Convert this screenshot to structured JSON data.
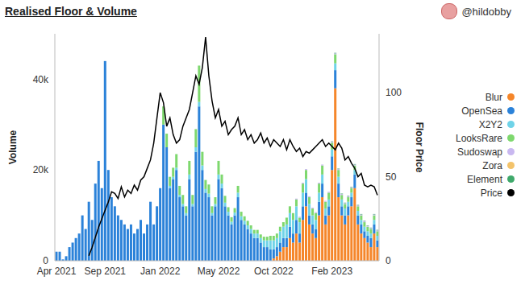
{
  "chart_data": {
    "type": "bar",
    "title": "Realised Floor & Volume",
    "handle": "@hildobby",
    "y_label": "Volume",
    "y2_label": "Floor Price",
    "stacked": true,
    "grid": false,
    "legend": "right",
    "categories": [
      "Apr 2021",
      null,
      null,
      null,
      null,
      null,
      null,
      null,
      null,
      null,
      null,
      null,
      null,
      null,
      null,
      "Sep 2021",
      null,
      null,
      null,
      null,
      null,
      null,
      null,
      null,
      null,
      null,
      null,
      null,
      null,
      null,
      null,
      null,
      "Jan 2022",
      null,
      null,
      null,
      null,
      null,
      null,
      null,
      null,
      null,
      null,
      null,
      null,
      null,
      null,
      null,
      null,
      null,
      "May 2022",
      null,
      null,
      null,
      null,
      null,
      null,
      null,
      null,
      null,
      null,
      null,
      null,
      null,
      null,
      null,
      null,
      "Oct 2022",
      null,
      null,
      null,
      null,
      null,
      null,
      null,
      null,
      null,
      null,
      null,
      null,
      null,
      null,
      null,
      null,
      null,
      "Feb 2023",
      null,
      null,
      null,
      null,
      null,
      null,
      null,
      null,
      null,
      null,
      null,
      null,
      null,
      null
    ],
    "ylim": [
      0,
      50000
    ],
    "yticks": [
      0,
      {
        "value": 20000,
        "label": "20k"
      },
      {
        "value": 40000,
        "label": "40k"
      }
    ],
    "y2lim": [
      0,
      135
    ],
    "y2ticks": [
      0,
      50,
      100
    ],
    "series": [
      {
        "name": "Blur",
        "color": "#f5862a",
        "type": "bar",
        "values": [
          0,
          0,
          0,
          0,
          0,
          0,
          0,
          0,
          0,
          0,
          0,
          0,
          0,
          0,
          0,
          0,
          0,
          0,
          0,
          0,
          0,
          0,
          0,
          0,
          0,
          0,
          0,
          0,
          0,
          0,
          0,
          0,
          0,
          0,
          0,
          0,
          0,
          0,
          0,
          0,
          0,
          0,
          0,
          0,
          0,
          0,
          0,
          0,
          0,
          0,
          0,
          0,
          0,
          0,
          0,
          0,
          0,
          0,
          0,
          0,
          0,
          0,
          0,
          0,
          0,
          0,
          0,
          500,
          1000,
          2000,
          3000,
          3000,
          5000,
          4000,
          6000,
          4000,
          9000,
          12000,
          8000,
          6000,
          5000,
          10000,
          14000,
          8000,
          10000,
          20000,
          38000,
          14000,
          10000,
          8000,
          10000,
          12000,
          16000,
          8000,
          6000,
          5000,
          4000,
          3000,
          6000,
          3000
        ]
      },
      {
        "name": "OpenSea",
        "color": "#2b82d9",
        "type": "bar",
        "values": [
          2000,
          2000,
          300,
          1000,
          3000,
          4000,
          5000,
          6000,
          10000,
          7000,
          13000,
          9000,
          17000,
          22000,
          16000,
          44000,
          20000,
          14000,
          12000,
          10000,
          9000,
          8000,
          7000,
          8000,
          6000,
          7000,
          9000,
          6000,
          8000,
          13000,
          8000,
          12000,
          16000,
          30000,
          25000,
          16000,
          18000,
          20000,
          14000,
          12000,
          10000,
          18000,
          12000,
          24000,
          34000,
          20000,
          15000,
          14000,
          10000,
          12000,
          18000,
          16000,
          12000,
          10000,
          8000,
          10000,
          14000,
          9000,
          8000,
          7000,
          6000,
          5000,
          5000,
          4000,
          3000,
          3000,
          2500,
          2000,
          2000,
          2000,
          2000,
          2000,
          2500,
          2000,
          3000,
          2000,
          3000,
          3000,
          2000,
          2000,
          2000,
          3000,
          3000,
          2000,
          2000,
          3000,
          4000,
          3000,
          2000,
          2000,
          2000,
          2000,
          3000,
          2000,
          2000,
          1500,
          1500,
          2000,
          2000,
          1500
        ]
      },
      {
        "name": "X2Y2",
        "color": "#6fd3e8",
        "type": "bar",
        "values": [
          0,
          0,
          0,
          0,
          0,
          0,
          0,
          0,
          0,
          0,
          0,
          0,
          0,
          0,
          0,
          0,
          0,
          0,
          0,
          0,
          0,
          0,
          0,
          0,
          0,
          0,
          0,
          0,
          0,
          0,
          0,
          0,
          0,
          0,
          0,
          500,
          500,
          500,
          500,
          500,
          500,
          1000,
          500,
          1000,
          1000,
          1000,
          800,
          800,
          500,
          500,
          1000,
          1000,
          800,
          800,
          600,
          600,
          1000,
          800,
          800,
          800,
          1000,
          1000,
          1000,
          1000,
          1500,
          1500,
          2000,
          2000,
          2000,
          2500,
          2500,
          3000,
          3000,
          3000,
          3000,
          2500,
          3000,
          3000,
          2500,
          2000,
          2000,
          2000,
          2000,
          1500,
          1500,
          1500,
          1500,
          1500,
          1500,
          1500,
          1000,
          1000,
          1000,
          1000,
          1000,
          1000,
          1000,
          1000,
          1000,
          1000
        ]
      },
      {
        "name": "LooksRare",
        "color": "#7ed86e",
        "type": "bar",
        "values": [
          0,
          0,
          0,
          0,
          0,
          0,
          0,
          0,
          0,
          0,
          0,
          0,
          0,
          0,
          0,
          0,
          0,
          0,
          0,
          0,
          0,
          0,
          0,
          0,
          0,
          0,
          0,
          0,
          0,
          0,
          0,
          0,
          0,
          4000,
          3000,
          2000,
          2000,
          3000,
          2000,
          2000,
          1500,
          3000,
          2000,
          4000,
          8000,
          3000,
          2000,
          2000,
          1500,
          1500,
          3000,
          2000,
          1500,
          1000,
          1000,
          1000,
          1500,
          1000,
          1000,
          1000,
          800,
          800,
          800,
          800,
          800,
          800,
          1000,
          1000,
          1000,
          1000,
          1000,
          1500,
          1500,
          1500,
          1500,
          1000,
          2000,
          2000,
          1500,
          1500,
          1500,
          2000,
          2000,
          1500,
          1500,
          1500,
          2000,
          1500,
          1000,
          1000,
          1000,
          1000,
          1000,
          1000,
          1000,
          1000,
          1000,
          1000,
          1000,
          1000
        ]
      },
      {
        "name": "Sudoswap",
        "color": "#c9b8f0",
        "type": "bar",
        "values": [
          0,
          0,
          0,
          0,
          0,
          0,
          0,
          0,
          0,
          0,
          0,
          0,
          0,
          0,
          0,
          0,
          0,
          0,
          0,
          0,
          0,
          0,
          0,
          0,
          0,
          0,
          0,
          0,
          0,
          0,
          0,
          0,
          0,
          0,
          0,
          0,
          0,
          0,
          0,
          0,
          0,
          0,
          0,
          0,
          0,
          0,
          0,
          0,
          0,
          0,
          0,
          0,
          0,
          0,
          0,
          0,
          0,
          0,
          0,
          0,
          0,
          0,
          0,
          0,
          0,
          0,
          0,
          0,
          0,
          0,
          0,
          0,
          0,
          0,
          200,
          200,
          200,
          200,
          200,
          200,
          200,
          200,
          200,
          200,
          200,
          200,
          200,
          200,
          200,
          200,
          200,
          200,
          200,
          200,
          200,
          200,
          200,
          200,
          200,
          200
        ]
      },
      {
        "name": "Zora",
        "color": "#f3c36b",
        "type": "bar",
        "values": [
          0,
          0,
          0,
          0,
          0,
          0,
          0,
          0,
          0,
          0,
          0,
          0,
          0,
          0,
          0,
          0,
          0,
          0,
          0,
          0,
          0,
          0,
          0,
          0,
          0,
          0,
          0,
          0,
          0,
          0,
          0,
          0,
          0,
          0,
          0,
          0,
          0,
          0,
          0,
          0,
          0,
          0,
          0,
          0,
          0,
          0,
          0,
          0,
          0,
          0,
          0,
          0,
          0,
          0,
          0,
          0,
          0,
          0,
          0,
          0,
          0,
          0,
          0,
          0,
          0,
          0,
          0,
          0,
          0,
          0,
          0,
          0,
          0,
          0,
          0,
          0,
          0,
          0,
          0,
          0,
          0,
          0,
          0,
          0,
          0,
          0,
          0,
          0,
          0,
          0,
          0,
          0,
          0,
          0,
          0,
          0,
          0,
          0,
          0,
          0
        ]
      },
      {
        "name": "Element",
        "color": "#3fa96b",
        "type": "bar",
        "values": [
          0,
          0,
          0,
          0,
          0,
          0,
          0,
          0,
          0,
          0,
          0,
          0,
          0,
          0,
          0,
          0,
          0,
          0,
          0,
          0,
          0,
          0,
          0,
          0,
          0,
          0,
          0,
          0,
          0,
          0,
          0,
          0,
          0,
          0,
          0,
          0,
          0,
          0,
          0,
          0,
          0,
          0,
          0,
          0,
          0,
          0,
          0,
          0,
          0,
          0,
          0,
          0,
          0,
          0,
          0,
          0,
          0,
          0,
          0,
          0,
          0,
          0,
          0,
          0,
          0,
          0,
          0,
          0,
          0,
          0,
          0,
          0,
          0,
          0,
          0,
          0,
          0,
          0,
          0,
          0,
          0,
          0,
          0,
          0,
          0,
          100,
          100,
          100,
          100,
          100,
          100,
          100,
          100,
          100,
          100,
          100,
          100,
          100,
          100,
          100
        ]
      },
      {
        "name": "Price",
        "color": "#000000",
        "type": "line",
        "axis": "y2",
        "values": [
          null,
          null,
          null,
          null,
          null,
          null,
          null,
          null,
          null,
          null,
          3,
          8,
          14,
          20,
          25,
          30,
          35,
          41,
          40,
          37,
          44,
          38,
          42,
          40,
          45,
          42,
          48,
          50,
          55,
          60,
          70,
          85,
          100,
          94,
          80,
          85,
          75,
          70,
          72,
          80,
          85,
          90,
          100,
          110,
          105,
          115,
          133,
          110,
          95,
          85,
          90,
          80,
          83,
          75,
          78,
          80,
          85,
          75,
          78,
          72,
          75,
          70,
          72,
          76,
          70,
          73,
          68,
          72,
          70,
          68,
          72,
          66,
          72,
          68,
          65,
          67,
          62,
          65,
          64,
          66,
          68,
          70,
          72,
          68,
          70,
          68,
          66,
          70,
          67,
          60,
          62,
          58,
          55,
          50,
          52,
          45,
          44,
          45,
          44,
          39
        ]
      }
    ]
  }
}
